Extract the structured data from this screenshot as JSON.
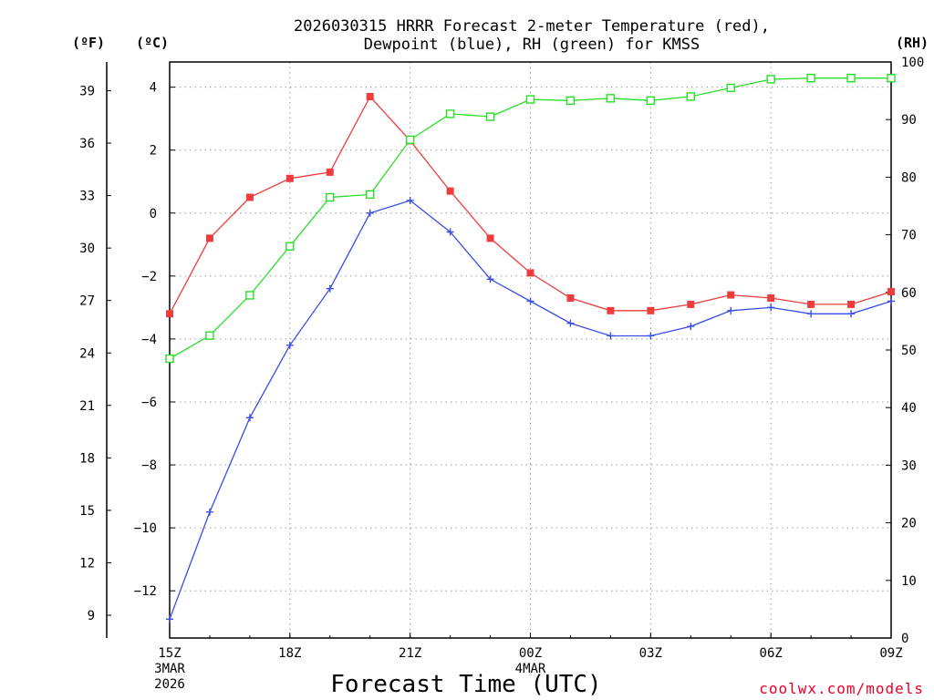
{
  "chart_data": {
    "type": "line",
    "title": [
      "2026030315 HRRR Forecast 2-meter Temperature (red),",
      "Dewpoint (blue), RH (green) for KMSS"
    ],
    "xlabel": "Forecast Time (UTC)",
    "credit": "coolwx.com/models",
    "units": {
      "fahrenheit": "(ºF)",
      "celsius": "(ºC)",
      "rh": "(RH)"
    },
    "x_hours": [
      0,
      1,
      2,
      3,
      4,
      5,
      6,
      7,
      8,
      9,
      10,
      11,
      12,
      13,
      14,
      15,
      16,
      17,
      18
    ],
    "x_ticks": [
      {
        "hour": 0,
        "label": [
          "15Z",
          "3MAR",
          "2026"
        ]
      },
      {
        "hour": 3,
        "label": [
          "18Z"
        ]
      },
      {
        "hour": 6,
        "label": [
          "21Z"
        ]
      },
      {
        "hour": 9,
        "label": [
          "00Z",
          "4MAR"
        ]
      },
      {
        "hour": 12,
        "label": [
          "03Z"
        ]
      },
      {
        "hour": 15,
        "label": [
          "06Z"
        ]
      },
      {
        "hour": 18,
        "label": [
          "09Z"
        ]
      }
    ],
    "xlim": [
      0,
      18
    ],
    "celsius_axis": {
      "ylim": [
        -13.5,
        4.8
      ],
      "ticks": [
        4,
        2,
        0,
        -2,
        -4,
        -6,
        -8,
        -10,
        -12
      ]
    },
    "fahrenheit_axis": {
      "ticks": [
        39,
        36,
        33,
        30,
        27,
        24,
        21,
        18,
        15,
        12,
        9
      ]
    },
    "rh_axis": {
      "ylim": [
        0,
        100
      ],
      "ticks": [
        100,
        90,
        80,
        70,
        60,
        50,
        40,
        30,
        20,
        10,
        0
      ]
    },
    "series": [
      {
        "name": "Temperature",
        "axis": "celsius",
        "color": "#f03c3c",
        "marker": "filled-square",
        "values": [
          -3.2,
          -0.8,
          0.5,
          1.1,
          1.3,
          3.7,
          2.3,
          0.7,
          -0.8,
          -1.9,
          -2.7,
          -3.1,
          -3.1,
          -2.9,
          -2.6,
          -2.7,
          -2.9,
          -2.9,
          -2.5
        ]
      },
      {
        "name": "Dewpoint",
        "axis": "celsius",
        "color": "#3a4de6",
        "marker": "plus",
        "values": [
          -12.9,
          -9.5,
          -6.5,
          -4.2,
          -2.4,
          0.0,
          0.4,
          -0.6,
          -2.1,
          -2.8,
          -3.5,
          -3.9,
          -3.9,
          -3.6,
          -3.1,
          -3.0,
          -3.2,
          -3.2,
          -2.8
        ]
      },
      {
        "name": "RH",
        "axis": "rh",
        "color": "#26e026",
        "marker": "open-square",
        "values": [
          48.5,
          52.5,
          59.5,
          68.0,
          76.5,
          77.0,
          86.5,
          91.0,
          90.5,
          93.5,
          93.3,
          93.7,
          93.3,
          94.0,
          95.5,
          97.0,
          97.2,
          97.2,
          97.2
        ]
      }
    ]
  }
}
